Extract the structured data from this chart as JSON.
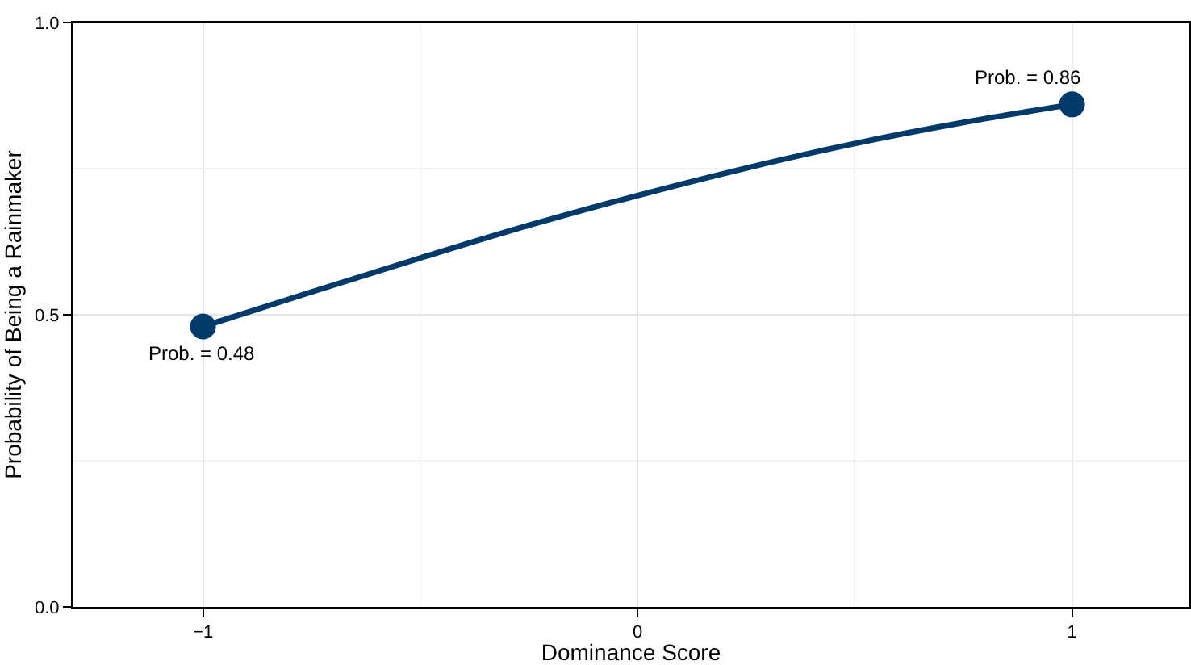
{
  "chart_data": {
    "type": "line",
    "xlabel": "Dominance Score",
    "ylabel": "Probability of Being a Rainmaker",
    "series": [
      {
        "color": "#003a6b",
        "marker": "none",
        "x": [
          -1,
          -0.75,
          -0.5,
          -0.25,
          0,
          0.25,
          0.5,
          0.75,
          1
        ],
        "values": [
          0.48,
          0.539,
          0.597,
          0.653,
          0.704,
          0.751,
          0.793,
          0.829,
          0.86
        ]
      },
      {
        "type": "scatter",
        "color": "#003a6b",
        "marker": "circle",
        "x": [
          -1,
          1
        ],
        "values": [
          0.48,
          0.86
        ]
      }
    ],
    "annotations": [
      {
        "text": "Prob. = 0.48",
        "x": -1,
        "y": 0.48
      },
      {
        "text": "Prob. = 0.86",
        "x": 1,
        "y": 0.86
      }
    ],
    "xlim": [
      -1.3,
      1.27
    ],
    "ylim": [
      0,
      1
    ],
    "xticks": [
      {
        "value": -1,
        "label": "−1"
      },
      {
        "value": -0.5,
        "label": null
      },
      0,
      {
        "value": 0.5,
        "label": null
      },
      1
    ],
    "yticks": [
      {
        "value": 0,
        "label": "0.0"
      },
      {
        "value": 0.25,
        "label": null
      },
      0.5,
      {
        "value": 0.75,
        "label": null
      },
      {
        "value": 1,
        "label": "1.0"
      }
    ],
    "grid": true
  }
}
